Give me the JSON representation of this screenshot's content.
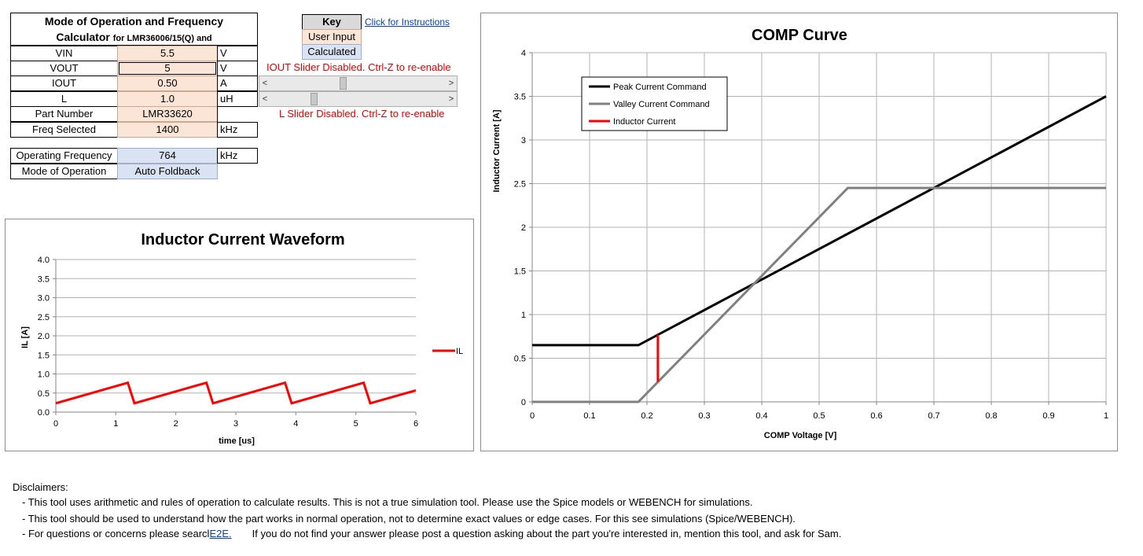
{
  "calculator": {
    "title_line1": "Mode of Operation and Frequency",
    "title_line2": "Calculator",
    "title_line2_small": "for LMR36006/15(Q) and",
    "rows": [
      {
        "label": "VIN",
        "value": "5.5",
        "unit": "V"
      },
      {
        "label": "VOUT",
        "value": "5",
        "unit": "V"
      },
      {
        "label": "IOUT",
        "value": "0.50",
        "unit": "A"
      },
      {
        "label": "L",
        "value": "1.0",
        "unit": "uH"
      },
      {
        "label": "Part Number",
        "value": "LMR33620",
        "unit": ""
      },
      {
        "label": "Freq Selected",
        "value": "1400",
        "unit": "kHz"
      }
    ],
    "outputs": [
      {
        "label": "Operating Frequency",
        "value": "764",
        "unit": "kHz"
      },
      {
        "label": "Mode of Operation",
        "value": "Auto Foldback",
        "unit": ""
      }
    ],
    "iout_warning": "IOUT Slider Disabled. Ctrl-Z to re-enable",
    "l_warning": "L Slider Disabled. Ctrl-Z to re-enable",
    "iout_slider": {
      "position": 0.41,
      "left_arrow": "<",
      "right_arrow": ">"
    },
    "l_slider": {
      "position": 0.24,
      "left_arrow": "<",
      "right_arrow": ">"
    }
  },
  "key": {
    "title": "Key",
    "user_input": "User Input",
    "calculated": "Calculated",
    "instructions_link": "Click for Instructions",
    "colors": {
      "input": "#fbe5d6",
      "calculated": "#dae3f3",
      "key_header": "#d9d9d9"
    }
  },
  "chart_data": [
    {
      "type": "line",
      "title": "Inductor Current Waveform",
      "xlabel": "time [us]",
      "ylabel": "IL [A]",
      "xlim": [
        0,
        6
      ],
      "ylim": [
        0,
        4
      ],
      "xticks": [
        "0",
        "1",
        "2",
        "3",
        "4",
        "5",
        "6"
      ],
      "yticks": [
        "0.0",
        "0.5",
        "1.0",
        "1.5",
        "2.0",
        "2.5",
        "3.0",
        "3.5",
        "4.0"
      ],
      "grid": "horizontal",
      "legend": "right",
      "series": [
        {
          "name": "IL",
          "color": "#ff0000",
          "x": [
            0,
            1.2,
            1.31,
            2.51,
            2.62,
            3.82,
            3.93,
            5.13,
            5.24,
            6
          ],
          "y": [
            0.23,
            0.77,
            0.23,
            0.77,
            0.23,
            0.77,
            0.23,
            0.77,
            0.23,
            0.57
          ]
        }
      ]
    },
    {
      "type": "line",
      "title": "COMP Curve",
      "xlabel": "COMP Voltage [V]",
      "ylabel": "Inductor Current [A]",
      "xlim": [
        0,
        1
      ],
      "ylim": [
        0,
        4
      ],
      "xticks": [
        "0",
        "0.1",
        "0.2",
        "0.3",
        "0.4",
        "0.5",
        "0.6",
        "0.7",
        "0.8",
        "0.9",
        "1"
      ],
      "yticks": [
        "0",
        "0.5",
        "1",
        "1.5",
        "2",
        "2.5",
        "3",
        "3.5",
        "4"
      ],
      "grid": "both",
      "legend": "top-left",
      "series": [
        {
          "name": "Peak Current Command",
          "color": "#000000",
          "x": [
            0,
            0.185,
            1.0
          ],
          "y": [
            0.65,
            0.65,
            3.5
          ]
        },
        {
          "name": "Valley Current Command",
          "color": "#808080",
          "x": [
            0,
            0.185,
            0.55,
            1.0
          ],
          "y": [
            0,
            0,
            2.45,
            2.45
          ]
        },
        {
          "name": "Inductor Current",
          "color": "#ff0000",
          "x": [
            0.219,
            0.219
          ],
          "y": [
            0.23,
            0.77
          ]
        }
      ]
    }
  ],
  "disclaimers": {
    "heading": "Disclaimers:",
    "line1": "- This tool uses arithmetic and rules of operation to calculate results. This is not a true simulation tool. Please use the Spice models or WEBENCH for simulations.",
    "line2": "- This tool should be used to understand how the part works in normal operation, not to determine exact values or edge cases. For this see simulations (Spice/WEBENCH).",
    "line3_a": "- For questions or concerns please searcl",
    "line3_link": "E2E.",
    "line3_b": "If you do not find your answer please post a question asking about the part you're interested in, mention this tool, and ask for Sam."
  }
}
